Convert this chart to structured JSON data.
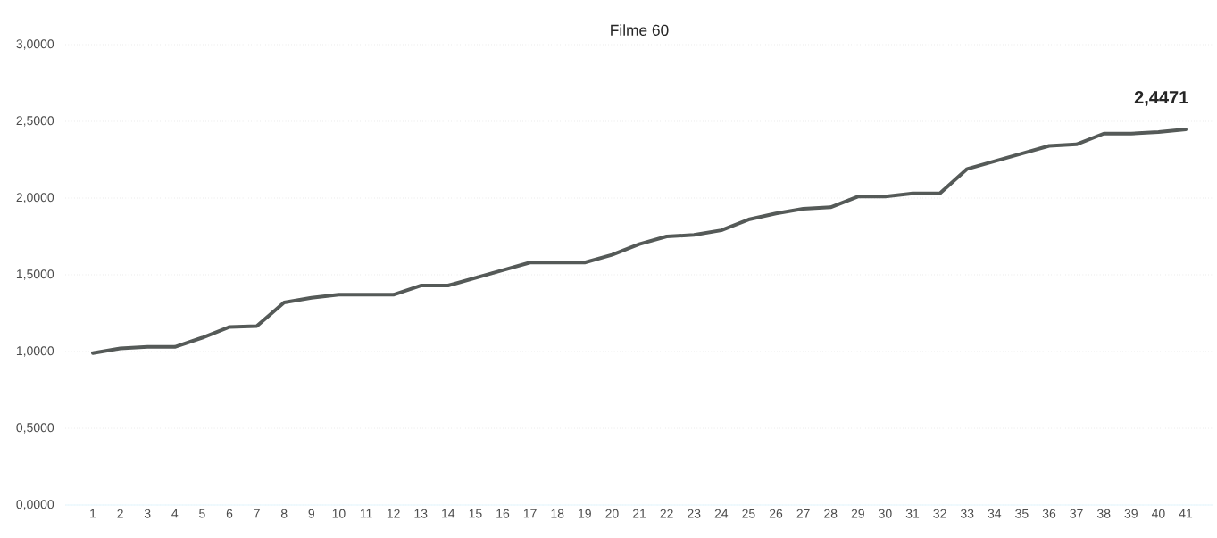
{
  "chart_data": {
    "type": "line",
    "title": "Filme 60",
    "categories": [
      "1",
      "2",
      "3",
      "4",
      "5",
      "6",
      "7",
      "8",
      "9",
      "10",
      "11",
      "12",
      "13",
      "14",
      "15",
      "16",
      "17",
      "18",
      "19",
      "20",
      "21",
      "22",
      "23",
      "24",
      "25",
      "26",
      "27",
      "28",
      "29",
      "30",
      "31",
      "32",
      "33",
      "34",
      "35",
      "36",
      "37",
      "38",
      "39",
      "40",
      "41"
    ],
    "series": [
      {
        "color": "#555a58",
        "values": [
          0.99,
          1.02,
          1.03,
          1.03,
          1.09,
          1.16,
          1.165,
          1.32,
          1.35,
          1.37,
          1.37,
          1.37,
          1.43,
          1.43,
          1.48,
          1.53,
          1.58,
          1.58,
          1.58,
          1.63,
          1.7,
          1.75,
          1.76,
          1.79,
          1.86,
          1.9,
          1.93,
          1.94,
          2.01,
          2.01,
          2.03,
          2.03,
          2.19,
          2.24,
          2.29,
          2.34,
          2.35,
          2.42,
          2.42,
          2.43,
          2.4471
        ],
        "value_labels": [
          null,
          null,
          null,
          null,
          null,
          null,
          null,
          null,
          null,
          null,
          null,
          null,
          null,
          null,
          null,
          null,
          null,
          null,
          null,
          null,
          null,
          null,
          null,
          null,
          null,
          null,
          null,
          null,
          null,
          null,
          null,
          null,
          null,
          null,
          null,
          null,
          null,
          null,
          null,
          null,
          "2,4471"
        ]
      }
    ],
    "ylim": [
      0,
      3
    ],
    "yticks": [
      {
        "value": 0,
        "label": "0,0000"
      },
      {
        "value": 0.5,
        "label": "0,5000"
      },
      {
        "value": 1,
        "label": "1,0000"
      },
      {
        "value": 1.5,
        "label": "1,5000"
      },
      {
        "value": 2,
        "label": "2,0000"
      },
      {
        "value": 2.5,
        "label": "2,5000"
      },
      {
        "value": 3,
        "label": "3,0000"
      }
    ],
    "grid": "y",
    "marker": "none",
    "line_style": "solid"
  }
}
